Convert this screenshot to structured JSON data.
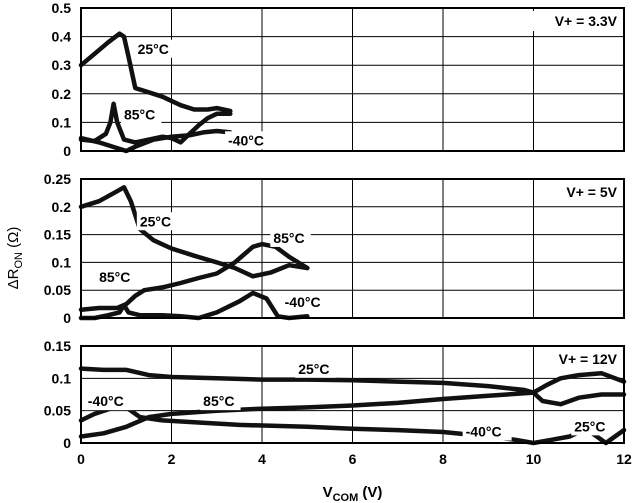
{
  "chart_data": {
    "type": "line",
    "ylabel_base": "ΔR",
    "ylabel_sub": "ON",
    "ylabel_unit": " (Ω)",
    "xlabel_base": "V",
    "xlabel_sub": "COM",
    "xlabel_unit": " (V)",
    "xlim": [
      0,
      12
    ],
    "xticks": [
      0,
      2,
      4,
      6,
      8,
      10,
      12
    ],
    "grid": true,
    "panels": [
      {
        "condition": "V+ = 3.3V",
        "ylim": [
          0,
          0.5
        ],
        "yticks": [
          0,
          0.1,
          0.2,
          0.3,
          0.4,
          0.5
        ],
        "ytick_labels": [
          "0",
          "0.1",
          "0.2",
          "0.3",
          "0.4",
          "0.5"
        ],
        "series": [
          {
            "name": "25°C",
            "label_at": [
              1.25,
              0.34
            ],
            "x": [
              0,
              0.3,
              0.6,
              0.85,
              0.95,
              1.05,
              1.2,
              1.4,
              1.8,
              2.2,
              2.5,
              2.8,
              3.0,
              3.3
            ],
            "y": [
              0.3,
              0.34,
              0.38,
              0.41,
              0.4,
              0.33,
              0.22,
              0.21,
              0.19,
              0.16,
              0.145,
              0.145,
              0.15,
              0.14
            ]
          },
          {
            "name": "85°C",
            "label_at": [
              0.95,
              0.11
            ],
            "x": [
              0,
              0.3,
              0.55,
              0.65,
              0.72,
              0.8,
              0.95,
              1.2,
              1.5,
              1.8,
              2.0,
              2.2,
              2.4,
              2.6,
              2.8,
              3.0,
              3.3
            ],
            "y": [
              0.04,
              0.035,
              0.06,
              0.1,
              0.165,
              0.1,
              0.04,
              0.03,
              0.04,
              0.05,
              0.045,
              0.03,
              0.06,
              0.09,
              0.115,
              0.13,
              0.13
            ]
          },
          {
            "name": "-40°C",
            "label_at": [
              3.25,
              0.02
            ],
            "x": [
              0,
              0.4,
              0.8,
              1.0,
              1.2,
              1.6,
              2.0,
              2.4,
              2.7,
              3.0,
              3.3
            ],
            "y": [
              0.045,
              0.03,
              0.01,
              0.0,
              0.015,
              0.04,
              0.05,
              0.055,
              0.065,
              0.07,
              0.065
            ]
          }
        ]
      },
      {
        "condition": "V+ = 5V",
        "ylim": [
          0,
          0.25
        ],
        "yticks": [
          0,
          0.05,
          0.1,
          0.15,
          0.2,
          0.25
        ],
        "ytick_labels": [
          "0",
          "0.05",
          "0.1",
          "0.15",
          "0.2",
          "0.25"
        ],
        "series": [
          {
            "name": "25°C",
            "label_at": [
              1.3,
              0.165
            ],
            "x": [
              0,
              0.4,
              0.8,
              0.95,
              1.1,
              1.3,
              1.6,
              2.0,
              2.5,
              3.0,
              3.4,
              3.8,
              4.2,
              4.6,
              5.0
            ],
            "y": [
              0.2,
              0.21,
              0.228,
              0.235,
              0.21,
              0.16,
              0.14,
              0.125,
              0.112,
              0.1,
              0.09,
              0.075,
              0.082,
              0.095,
              0.09
            ]
          },
          {
            "name": "85°C",
            "label_at": [
              4.25,
              0.135
            ],
            "x": [
              0,
              0.4,
              0.8,
              1.0,
              1.2,
              1.4,
              1.8,
              2.2,
              2.6,
              3.0,
              3.4,
              3.8,
              4.0,
              4.3,
              4.6,
              5.0
            ],
            "y": [
              0.015,
              0.018,
              0.018,
              0.025,
              0.04,
              0.05,
              0.055,
              0.063,
              0.072,
              0.08,
              0.1,
              0.128,
              0.133,
              0.128,
              0.11,
              0.09
            ]
          },
          {
            "name": "85°C",
            "label_at": [
              0.4,
              0.065
            ],
            "x": [],
            "y": []
          },
          {
            "name": "-40°C",
            "label_at": [
              4.5,
              0.02
            ],
            "x": [
              0,
              0.3,
              0.6,
              0.85,
              0.95,
              1.05,
              1.3,
              1.8,
              2.2,
              2.6,
              3.0,
              3.5,
              3.8,
              4.1,
              4.35,
              4.6,
              5.0
            ],
            "y": [
              0.0,
              0.0,
              0.005,
              0.01,
              0.023,
              0.01,
              0.005,
              0.005,
              0.003,
              0.0,
              0.01,
              0.03,
              0.045,
              0.035,
              0.003,
              0.0,
              0.003
            ]
          }
        ]
      },
      {
        "condition": "V+ = 12V",
        "ylim": [
          0,
          0.15
        ],
        "yticks": [
          0,
          0.05,
          0.1,
          0.15
        ],
        "ytick_labels": [
          "0",
          "0.05",
          "0.1",
          "0.15"
        ],
        "series": [
          {
            "name": "25°C",
            "label_at": [
              4.8,
              0.107
            ],
            "x": [
              0,
              0.5,
              1.0,
              1.5,
              2.0,
              3.0,
              4.0,
              5.0,
              6.0,
              7.0,
              8.0,
              9.0,
              9.8,
              10.0,
              10.2,
              10.6,
              11.0,
              11.5,
              12.0
            ],
            "y": [
              0.115,
              0.113,
              0.113,
              0.105,
              0.102,
              0.1,
              0.098,
              0.098,
              0.097,
              0.095,
              0.093,
              0.088,
              0.082,
              0.078,
              0.065,
              0.06,
              0.07,
              0.075,
              0.075
            ]
          },
          {
            "name": "85°C",
            "label_at": [
              2.7,
              0.057
            ],
            "x": [
              0,
              0.5,
              1.0,
              1.5,
              2.0,
              3.0,
              4.0,
              5.0,
              6.0,
              7.0,
              8.0,
              9.0,
              10.0,
              10.3,
              10.6,
              11.0,
              11.5,
              12.0
            ],
            "y": [
              0.01,
              0.015,
              0.025,
              0.04,
              0.045,
              0.05,
              0.053,
              0.055,
              0.058,
              0.062,
              0.068,
              0.073,
              0.078,
              0.09,
              0.1,
              0.105,
              0.108,
              0.095
            ]
          },
          {
            "name": "-40°C",
            "label_at": [
              0.15,
              0.057
            ],
            "x": [
              0,
              0.3,
              0.6,
              0.9,
              1.0,
              1.3,
              1.8,
              2.5,
              3.5,
              5.0,
              6.0,
              7.0,
              8.0,
              9.0,
              9.6,
              10.0,
              10.4,
              10.8,
              11.1,
              11.3,
              11.6,
              11.8,
              12.0
            ],
            "y": [
              0.035,
              0.045,
              0.052,
              0.058,
              0.055,
              0.04,
              0.035,
              0.032,
              0.028,
              0.025,
              0.022,
              0.02,
              0.017,
              0.01,
              0.005,
              0.0,
              0.005,
              0.01,
              0.02,
              0.015,
              0.0,
              0.01,
              0.02
            ]
          },
          {
            "name": "25°C",
            "label_at": [
              10.9,
              0.018
            ],
            "x": [],
            "y": []
          },
          {
            "name": "-40°C",
            "label_at": [
              8.5,
              0.01
            ],
            "x": [],
            "y": []
          }
        ]
      }
    ]
  }
}
